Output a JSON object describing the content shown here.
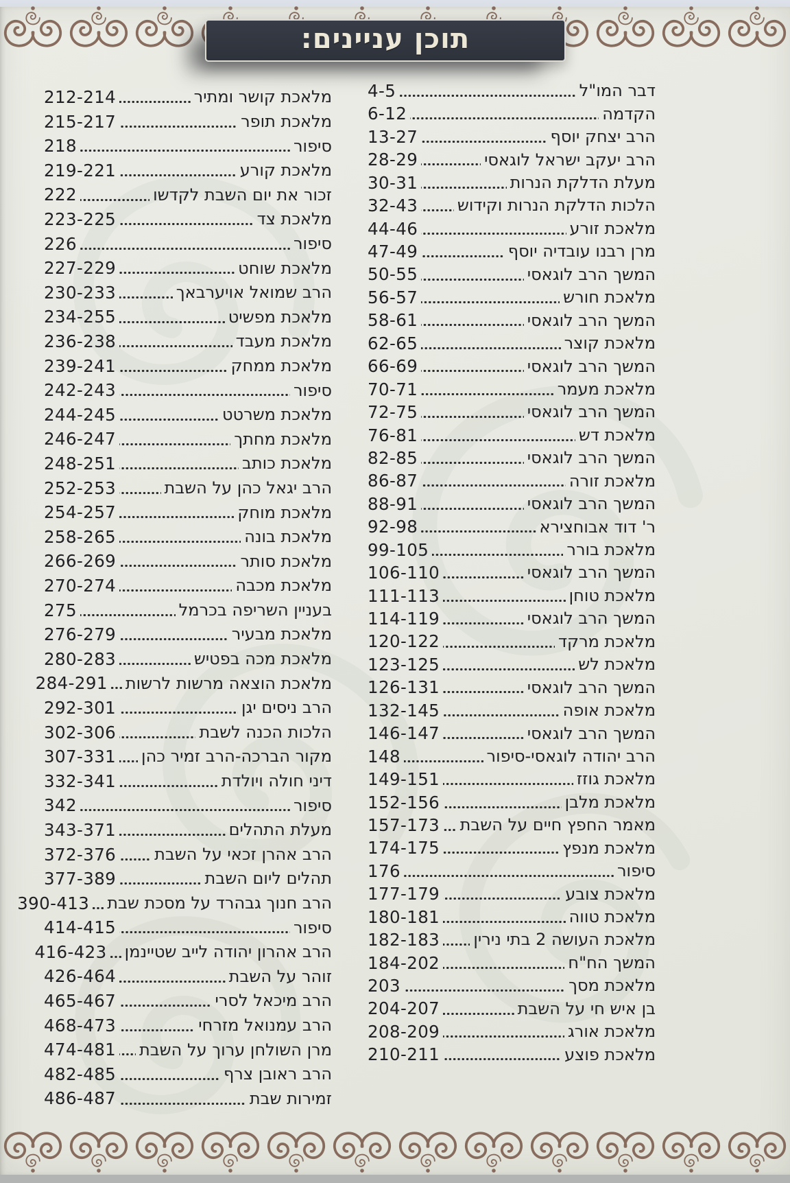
{
  "page_title": "תוכן עניינים:",
  "ornaments": {
    "top": "scroll-flourish-border",
    "bottom": "scroll-flourish-border",
    "watermark": "damask-floral-watermark"
  },
  "colors": {
    "page_background": "#e8e9e2",
    "title_background": "#31353e",
    "title_border": "#dcdad2",
    "title_text": "#ece7d7",
    "body_text": "#212125",
    "ornament_brown": "#7b5c4d"
  },
  "columns": {
    "right": [
      {
        "title": "דבר המו\"ל",
        "pages": "4-5"
      },
      {
        "title": "הקדמה",
        "pages": "6-12"
      },
      {
        "title": "הרב יצחק יוסף",
        "pages": "13-27"
      },
      {
        "title": "הרב יעקב ישראל לוגאסי",
        "pages": "28-29"
      },
      {
        "title": "מעלת הדלקת הנרות",
        "pages": "30-31"
      },
      {
        "title": "הלכות הדלקת הנרות וקידוש",
        "pages": "32-43"
      },
      {
        "title": "מלאכת זורע",
        "pages": "44-46"
      },
      {
        "title": "מרן רבנו עובדיה יוסף",
        "pages": "47-49"
      },
      {
        "title": "המשך הרב לוגאסי",
        "pages": "50-55"
      },
      {
        "title": "מלאכת חורש",
        "pages": "56-57"
      },
      {
        "title": "המשך הרב לוגאסי",
        "pages": "58-61"
      },
      {
        "title": "מלאכת קוצר",
        "pages": "62-65"
      },
      {
        "title": "המשך הרב לוגאסי",
        "pages": "66-69"
      },
      {
        "title": "מלאכת מעמר",
        "pages": "70-71"
      },
      {
        "title": "המשך הרב לוגאסי",
        "pages": "72-75"
      },
      {
        "title": "מלאכת דש",
        "pages": "76-81"
      },
      {
        "title": "המשך הרב לוגאסי",
        "pages": "82-85"
      },
      {
        "title": "מלאכת זורה",
        "pages": "86-87"
      },
      {
        "title": "המשך הרב לוגאסי",
        "pages": "88-91"
      },
      {
        "title": "ר' דוד אבוחצירא",
        "pages": "92-98"
      },
      {
        "title": "מלאכת בורר",
        "pages": "99-105"
      },
      {
        "title": "המשך הרב לוגאסי",
        "pages": "106-110"
      },
      {
        "title": "מלאכת טוחן",
        "pages": "111-113"
      },
      {
        "title": "המשך הרב לוגאסי",
        "pages": "114-119"
      },
      {
        "title": "מלאכת מרקד",
        "pages": "120-122"
      },
      {
        "title": "מלאכת לש",
        "pages": "123-125"
      },
      {
        "title": "המשך הרב לוגאסי",
        "pages": "126-131"
      },
      {
        "title": "מלאכת אופה",
        "pages": "132-145"
      },
      {
        "title": "המשך הרב לוגאסי",
        "pages": "146-147"
      },
      {
        "title": "הרב יהודה לוגאסי-סיפור",
        "pages": "148"
      },
      {
        "title": "מלאכת גוזז",
        "pages": "149-151"
      },
      {
        "title": "מלאכת מלבן",
        "pages": "152-156"
      },
      {
        "title": "מאמר החפץ חיים על השבת",
        "pages": "157-173"
      },
      {
        "title": "מלאכת מנפץ",
        "pages": "174-175"
      },
      {
        "title": "סיפור",
        "pages": "176"
      },
      {
        "title": "מלאכת צובע",
        "pages": "177-179"
      },
      {
        "title": "מלאכת טווה",
        "pages": "180-181"
      },
      {
        "title": "מלאכת העושה 2 בתי נירין",
        "pages": "182-183"
      },
      {
        "title": "המשך הח\"ח",
        "pages": "184-202"
      },
      {
        "title": "מלאכת מסך",
        "pages": "203"
      },
      {
        "title": "בן איש חי על השבת",
        "pages": "204-207"
      },
      {
        "title": "מלאכת אורג",
        "pages": "208-209"
      },
      {
        "title": "מלאכת פוצע",
        "pages": "210-211"
      }
    ],
    "left": [
      {
        "title": "מלאכת קושר ומתיר",
        "pages": "212-214"
      },
      {
        "title": "מלאכת תופר",
        "pages": "215-217"
      },
      {
        "title": "סיפור",
        "pages": "218"
      },
      {
        "title": "מלאכת קורע",
        "pages": "219-221"
      },
      {
        "title": "זכור את יום השבת לקדשו",
        "pages": "222"
      },
      {
        "title": "מלאכת צד",
        "pages": "223-225"
      },
      {
        "title": "סיפור",
        "pages": "226"
      },
      {
        "title": "מלאכת שוחט",
        "pages": "227-229"
      },
      {
        "title": "הרב שמואל אויערבאך",
        "pages": "230-233"
      },
      {
        "title": "מלאכת מפשיט",
        "pages": "234-255"
      },
      {
        "title": "מלאכת מעבד",
        "pages": "236-238"
      },
      {
        "title": "מלאכת ממחק",
        "pages": "239-241"
      },
      {
        "title": "סיפור",
        "pages": "242-243"
      },
      {
        "title": "מלאכת משרטט",
        "pages": "244-245"
      },
      {
        "title": "מלאכת מחתך",
        "pages": "246-247"
      },
      {
        "title": "מלאכת כותב",
        "pages": "248-251"
      },
      {
        "title": "הרב יגאל כהן על השבת",
        "pages": "252-253"
      },
      {
        "title": "מלאכת מוחק",
        "pages": "254-257"
      },
      {
        "title": "מלאכת בונה",
        "pages": "258-265"
      },
      {
        "title": "מלאכת סותר",
        "pages": "266-269"
      },
      {
        "title": "מלאכת מכבה",
        "pages": "270-274"
      },
      {
        "title": "בעניין השריפה בכרמל",
        "pages": "275"
      },
      {
        "title": "מלאכת מבעיר",
        "pages": "276-279"
      },
      {
        "title": "מלאכת מכה בפטיש",
        "pages": "280-283"
      },
      {
        "title": "מלאכת הוצאה מרשות לרשות",
        "pages": "284-291"
      },
      {
        "title": "הרב ניסים יגן",
        "pages": "292-301"
      },
      {
        "title": "הלכות הכנה לשבת",
        "pages": "302-306"
      },
      {
        "title": "מקור הברכה-הרב זמיר כהן",
        "pages": "307-331"
      },
      {
        "title": "דיני חולה ויולדת",
        "pages": "332-341"
      },
      {
        "title": "סיפור",
        "pages": "342"
      },
      {
        "title": "מעלת התהלים",
        "pages": "343-371"
      },
      {
        "title": "הרב אהרן זכאי על השבת",
        "pages": "372-376"
      },
      {
        "title": "תהלים ליום השבת",
        "pages": "377-389"
      },
      {
        "title": "הרב חנוך גבהרד על מסכת שבת",
        "pages": "390-413"
      },
      {
        "title": "סיפור",
        "pages": "414-415"
      },
      {
        "title": "הרב אהרון יהודה לייב שטיינמן",
        "pages": "416-423"
      },
      {
        "title": "זוהר על השבת",
        "pages": "426-464"
      },
      {
        "title": "הרב מיכאל לסרי",
        "pages": "465-467"
      },
      {
        "title": "הרב עמנואל מזרחי",
        "pages": "468-473"
      },
      {
        "title": "מרן השולחן ערוך על השבת",
        "pages": "474-481"
      },
      {
        "title": "הרב ראובן צרף",
        "pages": "482-485"
      },
      {
        "title": "זמירות שבת",
        "pages": "486-487"
      }
    ]
  }
}
